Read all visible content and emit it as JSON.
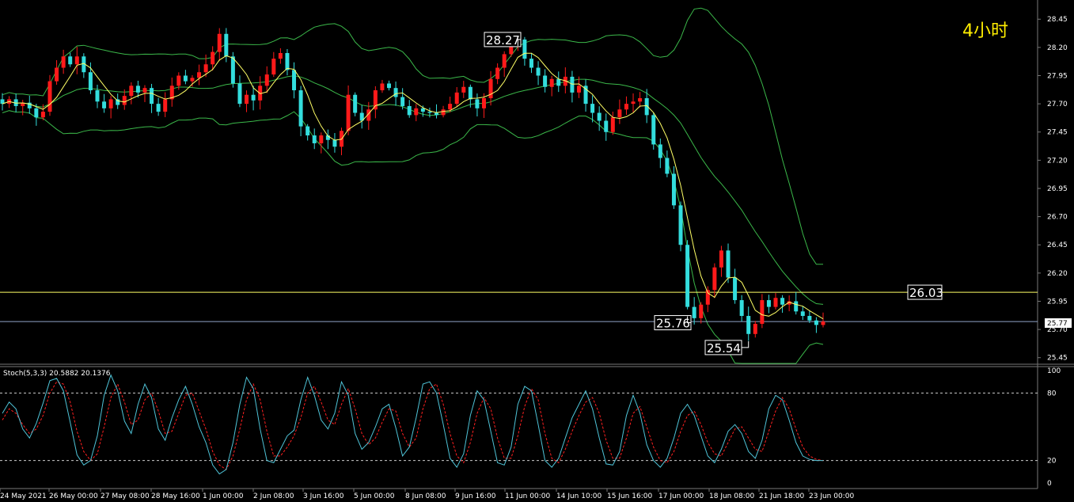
{
  "timeframe_label": "4小时",
  "chart_data": [
    {
      "type": "candlestick",
      "y_ticks": [
        "28.45",
        "28.20",
        "27.95",
        "27.70",
        "27.45",
        "27.20",
        "26.95",
        "26.70",
        "26.45",
        "26.20",
        "25.95",
        "25.70",
        "25.45"
      ],
      "ylim": [
        25.42,
        28.55
      ],
      "x_ticks": [
        "24 May 2021",
        "26 May 00:00",
        "27 May 08:00",
        "28 May 16:00",
        "1 Jun 00:00",
        "2 Jun 08:00",
        "3 Jun 16:00",
        "5 Jun 00:00",
        "8 Jun 08:00",
        "9 Jun 16:00",
        "11 Jun 00:00",
        "14 Jun 10:00",
        "15 Jun 16:00",
        "17 Jun 00:00",
        "18 Jun 08:00",
        "21 Jun 18:00",
        "23 Jun 00:00"
      ],
      "current_price": "25.77",
      "horizontal_levels": [
        {
          "value": 26.03,
          "label": "26.03",
          "color": "#ffff66"
        },
        {
          "value": 25.77,
          "color": "#8fa3c8"
        }
      ],
      "annotations": [
        {
          "label": "28.27",
          "value": 28.27
        },
        {
          "label": "25.76",
          "value": 25.76
        },
        {
          "label": "25.54",
          "value": 25.54
        }
      ],
      "colors": {
        "up": "#ff1a1a",
        "down": "#33dddd",
        "bands": "#3bb84a",
        "ma": "#ffff66"
      },
      "closes": [
        27.7,
        27.74,
        27.68,
        27.71,
        27.66,
        27.58,
        27.63,
        27.9,
        28.02,
        28.12,
        28.05,
        28.12,
        27.98,
        27.82,
        27.72,
        27.66,
        27.74,
        27.69,
        27.77,
        27.86,
        27.8,
        27.84,
        27.7,
        27.63,
        27.74,
        27.86,
        27.95,
        27.9,
        27.93,
        27.98,
        28.05,
        28.16,
        28.32,
        28.12,
        27.88,
        27.7,
        27.78,
        27.73,
        27.86,
        27.96,
        28.1,
        28.15,
        28.0,
        27.82,
        27.5,
        27.42,
        27.35,
        27.42,
        27.38,
        27.32,
        27.46,
        27.78,
        27.62,
        27.55,
        27.65,
        27.82,
        27.88,
        27.84,
        27.76,
        27.68,
        27.6,
        27.66,
        27.63,
        27.62,
        27.6,
        27.65,
        27.7,
        27.8,
        27.85,
        27.74,
        27.66,
        27.75,
        27.92,
        28.02,
        28.14,
        28.21,
        28.27,
        28.1,
        28.02,
        27.95,
        27.85,
        27.92,
        27.86,
        27.94,
        27.8,
        27.86,
        27.7,
        27.62,
        27.55,
        27.45,
        27.58,
        27.65,
        27.7,
        27.72,
        27.75,
        27.6,
        27.34,
        27.22,
        27.08,
        26.8,
        26.45,
        25.9,
        25.8,
        25.92,
        26.05,
        26.25,
        26.4,
        26.16,
        25.96,
        25.82,
        25.66,
        25.75,
        25.96,
        25.9,
        25.98,
        25.92,
        25.95,
        25.86,
        25.82,
        25.78,
        25.74,
        25.77
      ],
      "stoch_title": "Stoch(5,3,3) 20.5882 20.1376",
      "stoch_ticks": [
        "100",
        "80",
        "20",
        "0"
      ],
      "stoch_levels": [
        80,
        20
      ],
      "stoch_main": [
        62,
        72,
        66,
        48,
        40,
        53,
        71,
        91,
        93,
        82,
        54,
        25,
        16,
        20,
        42,
        78,
        96,
        82,
        55,
        44,
        70,
        88,
        76,
        48,
        38,
        58,
        74,
        86,
        70,
        50,
        36,
        16,
        8,
        12,
        36,
        70,
        94,
        84,
        48,
        20,
        18,
        30,
        42,
        47,
        74,
        94,
        78,
        56,
        48,
        62,
        90,
        78,
        44,
        30,
        36,
        50,
        66,
        70,
        49,
        24,
        32,
        58,
        88,
        90,
        80,
        52,
        22,
        14,
        26,
        60,
        82,
        74,
        46,
        18,
        16,
        32,
        70,
        86,
        82,
        52,
        20,
        14,
        22,
        40,
        58,
        70,
        82,
        66,
        40,
        17,
        16,
        28,
        60,
        78,
        62,
        34,
        20,
        14,
        22,
        40,
        62,
        70,
        60,
        42,
        24,
        18,
        30,
        46,
        52,
        44,
        28,
        22,
        38,
        66,
        78,
        74,
        56,
        36,
        24,
        21,
        20,
        20
      ],
      "stoch_signal": [
        56,
        66,
        62,
        52,
        44,
        48,
        60,
        80,
        90,
        88,
        72,
        46,
        28,
        20,
        26,
        50,
        76,
        88,
        72,
        52,
        56,
        74,
        80,
        64,
        44,
        46,
        62,
        78,
        80,
        64,
        48,
        28,
        16,
        12,
        24,
        48,
        74,
        88,
        74,
        46,
        24,
        24,
        32,
        42,
        58,
        80,
        86,
        72,
        56,
        52,
        70,
        84,
        66,
        44,
        34,
        40,
        54,
        66,
        64,
        44,
        32,
        40,
        66,
        84,
        88,
        70,
        44,
        24,
        18,
        36,
        62,
        76,
        66,
        40,
        22,
        22,
        42,
        68,
        84,
        74,
        44,
        22,
        18,
        30,
        46,
        60,
        72,
        76,
        62,
        38,
        22,
        22,
        40,
        62,
        68,
        50,
        32,
        20,
        18,
        28,
        46,
        60,
        64,
        52,
        36,
        26,
        24,
        36,
        48,
        50,
        40,
        30,
        28,
        46,
        64,
        76,
        66,
        48,
        32,
        24,
        21,
        20
      ]
    }
  ]
}
